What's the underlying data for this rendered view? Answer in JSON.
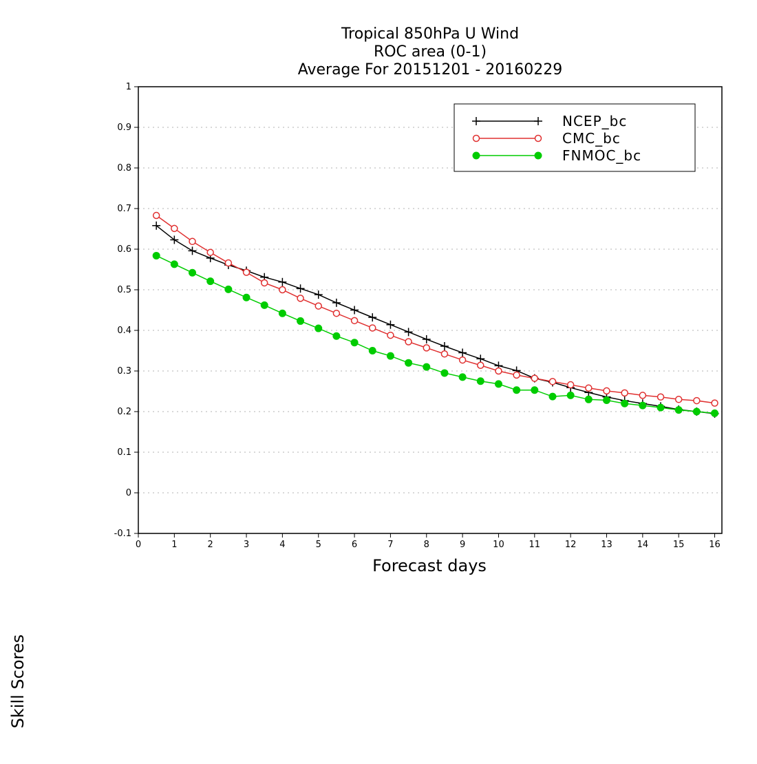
{
  "chart_data": {
    "type": "line",
    "title_lines": [
      "Tropical 850hPa U Wind",
      "ROC area (0-1)",
      "Average For 20151201 - 20160229"
    ],
    "xlabel": "Forecast days",
    "ylabel": "Skill Scores",
    "xlim": [
      0,
      16.2
    ],
    "ylim": [
      -0.1,
      1
    ],
    "xticks": [
      0,
      1,
      2,
      3,
      4,
      5,
      6,
      7,
      8,
      9,
      10,
      11,
      12,
      13,
      14,
      15,
      16
    ],
    "yticks": [
      -0.1,
      0,
      0.1,
      0.2,
      0.3,
      0.4,
      0.5,
      0.6,
      0.7,
      0.8,
      0.9,
      1
    ],
    "ytick_labels": [
      "-0.1",
      "0",
      "0.1",
      "0.2",
      "0.3",
      "0.4",
      "0.5",
      "0.6",
      "0.7",
      "0.8",
      "0.9",
      "1"
    ],
    "grid": true,
    "legend_position": "top-right",
    "x": [
      0.5,
      1.0,
      1.5,
      2.0,
      2.5,
      3.0,
      3.5,
      4.0,
      4.5,
      5.0,
      5.5,
      6.0,
      6.5,
      7.0,
      7.5,
      8.0,
      8.5,
      9.0,
      9.5,
      10.0,
      10.5,
      11.0,
      11.5,
      12.0,
      12.5,
      13.0,
      13.5,
      14.0,
      14.5,
      15.0,
      15.5,
      16.0
    ],
    "series": [
      {
        "name": "NCEP_bc",
        "color": "#000000",
        "marker": "plus",
        "values": [
          0.658,
          0.623,
          0.596,
          0.578,
          0.561,
          0.547,
          0.531,
          0.519,
          0.503,
          0.488,
          0.468,
          0.45,
          0.432,
          0.414,
          0.396,
          0.378,
          0.361,
          0.345,
          0.33,
          0.313,
          0.301,
          0.282,
          0.272,
          0.259,
          0.247,
          0.236,
          0.227,
          0.22,
          0.213,
          0.205,
          0.2,
          0.195
        ]
      },
      {
        "name": "CMC_bc",
        "color": "#e03030",
        "marker": "open-circle",
        "values": [
          0.683,
          0.651,
          0.619,
          0.592,
          0.566,
          0.543,
          0.517,
          0.5,
          0.479,
          0.46,
          0.442,
          0.424,
          0.406,
          0.388,
          0.372,
          0.357,
          0.342,
          0.327,
          0.314,
          0.3,
          0.29,
          0.282,
          0.274,
          0.266,
          0.258,
          0.251,
          0.246,
          0.24,
          0.236,
          0.23,
          0.227,
          0.221
        ]
      },
      {
        "name": "FNMOC_bc",
        "color": "#00cc00",
        "marker": "filled-circle",
        "values": [
          0.584,
          0.563,
          0.542,
          0.521,
          0.501,
          0.481,
          0.462,
          0.442,
          0.423,
          0.405,
          0.386,
          0.37,
          0.35,
          0.337,
          0.32,
          0.31,
          0.295,
          0.285,
          0.275,
          0.268,
          0.253,
          0.253,
          0.237,
          0.24,
          0.23,
          0.228,
          0.22,
          0.215,
          0.21,
          0.204,
          0.2,
          0.196
        ]
      }
    ]
  }
}
